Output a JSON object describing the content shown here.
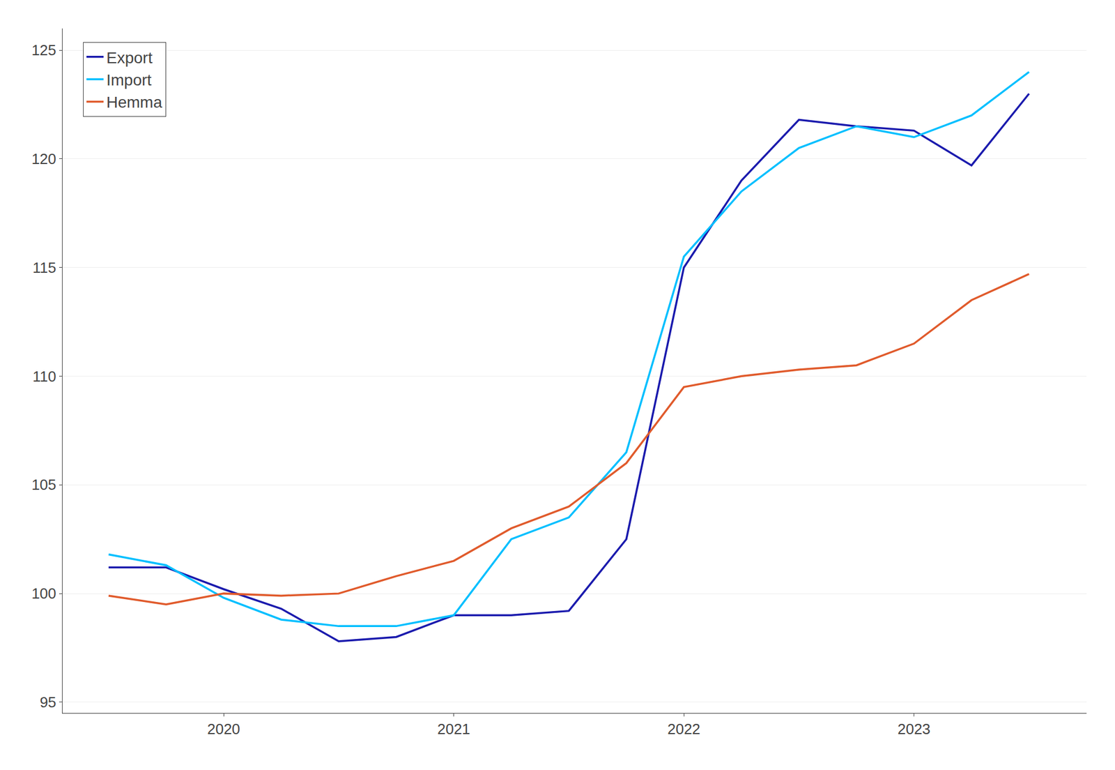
{
  "chart_data": {
    "type": "line",
    "x": [
      2019.5,
      2019.75,
      2020.0,
      2020.25,
      2020.5,
      2020.75,
      2021.0,
      2021.25,
      2021.5,
      2021.75,
      2022.0,
      2022.25,
      2022.5,
      2022.75,
      2023.0,
      2023.25,
      2023.5
    ],
    "series": [
      {
        "name": "Export",
        "color": "#1a1aad",
        "values": [
          101.2,
          101.2,
          100.2,
          99.3,
          97.8,
          98.0,
          99.0,
          99.0,
          99.2,
          102.5,
          115.0,
          119.0,
          121.8,
          121.5,
          121.3,
          119.7,
          123.0
        ]
      },
      {
        "name": "Import",
        "color": "#00bfff",
        "values": [
          101.8,
          101.3,
          99.8,
          98.8,
          98.5,
          98.5,
          99.0,
          102.5,
          103.5,
          106.5,
          115.5,
          118.5,
          120.5,
          121.5,
          121.0,
          122.0,
          124.0
        ]
      },
      {
        "name": "Hemma",
        "color": "#e05a2b",
        "values": [
          99.9,
          99.5,
          100.0,
          99.9,
          100.0,
          100.8,
          101.5,
          103.0,
          104.0,
          106.0,
          109.5,
          110.0,
          110.3,
          110.5,
          111.5,
          113.5,
          114.7
        ]
      }
    ],
    "xlim": [
      2019.3,
      2023.75
    ],
    "xticks": [
      2020,
      2021,
      2022,
      2023
    ],
    "ylim": [
      94.5,
      126
    ],
    "yticks": [
      95,
      100,
      105,
      110,
      115,
      120,
      125
    ],
    "grid": true,
    "legend": "upper left"
  }
}
